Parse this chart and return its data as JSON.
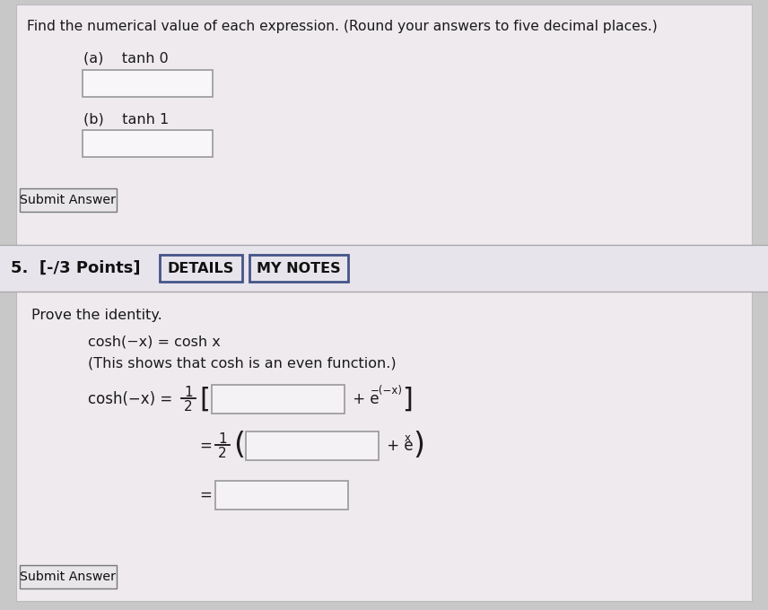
{
  "bg_color": "#c8c8c8",
  "panel_bg": "#f0eef0",
  "header_bg": "#e0dde0",
  "white": "#ffffff",
  "text_dark": "#222222",
  "text_medium": "#333333",
  "btn_border": "#555577",
  "box_border": "#888888",
  "title_text": "Find the numerical value of each expression. (Round your answers to five decimal places.)",
  "part_a_label": "(a)    tanh 0",
  "part_b_label": "(b)    tanh 1",
  "submit_btn": "Submit Answer",
  "problem_line": "5.  [-/3 Points]",
  "details_btn": "DETAILS",
  "mynotes_btn": "MY NOTES",
  "prove_text": "Prove the identity.",
  "identity_eq": "cosh(−x) = cosh x",
  "identity_note": "(This shows that cosh is an even function.)",
  "cosh_left": "cosh(−x) ="
}
